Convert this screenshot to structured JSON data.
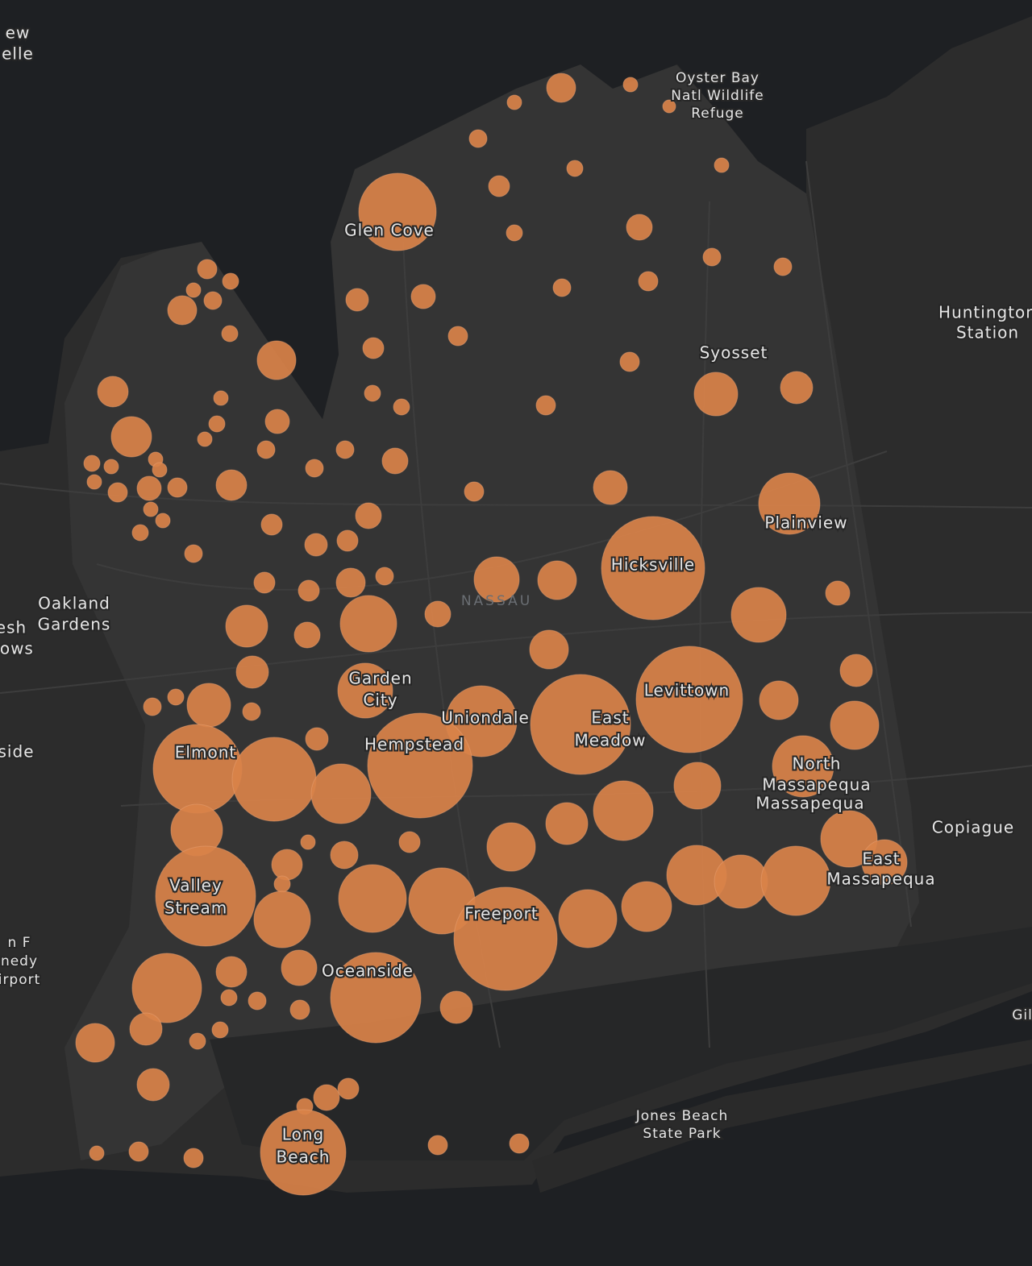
{
  "map": {
    "labels": [
      {
        "lines": [
          "ew",
          "elle"
        ]
      },
      {
        "lines": [
          "Oyster Bay",
          "Natl Wildlife",
          "Refuge"
        ]
      },
      {
        "lines": [
          "Glen Cove"
        ]
      },
      {
        "lines": [
          "Huntington",
          "Station"
        ]
      },
      {
        "lines": [
          "Syosset"
        ]
      },
      {
        "lines": [
          "Plainview"
        ]
      },
      {
        "lines": [
          "Hicksville"
        ]
      },
      {
        "lines": [
          "NASSAU"
        ]
      },
      {
        "lines": [
          "Oakland",
          "Gardens"
        ]
      },
      {
        "lines": [
          "esh",
          "dows"
        ]
      },
      {
        "lines": [
          "side"
        ]
      },
      {
        "lines": [
          "Garden",
          "City"
        ]
      },
      {
        "lines": [
          "Uniondale"
        ]
      },
      {
        "lines": [
          "East",
          "Meadow"
        ]
      },
      {
        "lines": [
          "Levittown"
        ]
      },
      {
        "lines": [
          "Hempstead"
        ]
      },
      {
        "lines": [
          "Elmont"
        ]
      },
      {
        "lines": [
          "North",
          "Massapequa"
        ]
      },
      {
        "lines": [
          "Massapequa"
        ]
      },
      {
        "lines": [
          "Copiague"
        ]
      },
      {
        "lines": [
          "East",
          "Massapequa"
        ]
      },
      {
        "lines": [
          "Valley",
          "Stream"
        ]
      },
      {
        "lines": [
          "Freeport"
        ]
      },
      {
        "lines": [
          "Oceanside"
        ]
      },
      {
        "lines": [
          "n F",
          "nedy",
          "irport"
        ]
      },
      {
        "lines": [
          "Gil"
        ]
      },
      {
        "lines": [
          "Jones Beach",
          "State Park"
        ]
      },
      {
        "lines": [
          "Long",
          "Beach"
        ]
      }
    ]
  }
}
